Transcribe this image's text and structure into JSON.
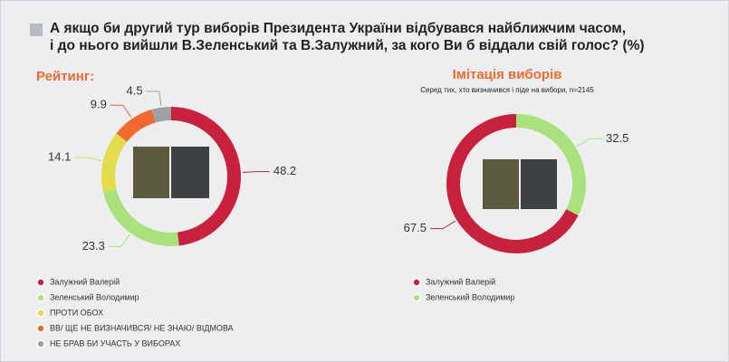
{
  "title": "А якщо би другий тур виборів Президента України відбувався найближчим часом, і до нього вийшли В.Зеленський та В.Залужний, за кого Ви б віддали свій голос? (%)",
  "chart_data": [
    {
      "type": "pie",
      "title": "Рейтинг:",
      "categories": [
        "Залужний Валерій",
        "Зеленський Володимир",
        "ПРОТИ ОБОХ",
        "ВВ/ ЩЕ НЕ ВИЗНАЧИВСЯ/ НЕ ЗНАЮ/ ВІДМОВА",
        "НЕ БРАВ БИ УЧАСТЬ У ВИБОРАХ"
      ],
      "values": [
        48.2,
        23.3,
        14.1,
        9.9,
        4.5
      ],
      "colors": [
        "#c8213b",
        "#a9e27d",
        "#e4dc4c",
        "#f2692d",
        "#a0a0a0"
      ]
    },
    {
      "type": "pie",
      "title": "Імітація виборів",
      "subtitle": "Серед тих, хто визначився і піде на вибори, n=2145",
      "categories": [
        "Залужний Валерій",
        "Зеленський Володимир"
      ],
      "values": [
        67.5,
        32.5
      ],
      "colors": [
        "#c8213b",
        "#a9e27d"
      ]
    }
  ]
}
